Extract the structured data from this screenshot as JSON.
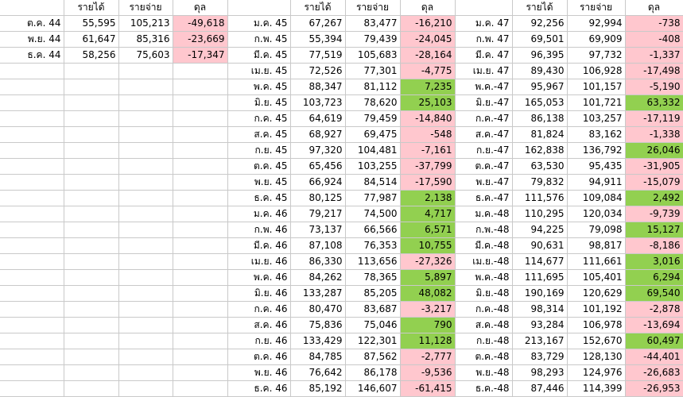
{
  "headers": {
    "income": "รายได้",
    "expense": "รายจ่าย",
    "balance": "ดุล"
  },
  "colors": {
    "negative_fill": "#ffc7ce",
    "positive_fill": "#92d050",
    "grid": "#c9c9c9"
  },
  "block1": [
    {
      "label": "ต.ค. 44",
      "income": "55,595",
      "expense": "105,213",
      "balance": "-49,618"
    },
    {
      "label": "พ.ย. 44",
      "income": "61,647",
      "expense": "85,316",
      "balance": "-23,669"
    },
    {
      "label": "ธ.ค. 44",
      "income": "58,256",
      "expense": "75,603",
      "balance": "-17,347"
    }
  ],
  "block2": [
    {
      "label": "ม.ค. 45",
      "income": "67,267",
      "expense": "83,477",
      "balance": "-16,210"
    },
    {
      "label": "ก.พ. 45",
      "income": "55,394",
      "expense": "79,439",
      "balance": "-24,045"
    },
    {
      "label": "มี.ค. 45",
      "income": "77,519",
      "expense": "105,683",
      "balance": "-28,164"
    },
    {
      "label": "เม.ย. 45",
      "income": "72,526",
      "expense": "77,301",
      "balance": "-4,775"
    },
    {
      "label": "พ.ค. 45",
      "income": "88,347",
      "expense": "81,112",
      "balance": "7,235"
    },
    {
      "label": "มิ.ย. 45",
      "income": "103,723",
      "expense": "78,620",
      "balance": "25,103"
    },
    {
      "label": "ก.ค. 45",
      "income": "64,619",
      "expense": "79,459",
      "balance": "-14,840"
    },
    {
      "label": "ส.ค. 45",
      "income": "68,927",
      "expense": "69,475",
      "balance": "-548"
    },
    {
      "label": "ก.ย. 45",
      "income": "97,320",
      "expense": "104,481",
      "balance": "-7,161"
    },
    {
      "label": "ต.ค. 45",
      "income": "65,456",
      "expense": "103,255",
      "balance": "-37,799"
    },
    {
      "label": "พ.ย. 45",
      "income": "66,924",
      "expense": "84,514",
      "balance": "-17,590"
    },
    {
      "label": "ธ.ค. 45",
      "income": "80,125",
      "expense": "77,987",
      "balance": "2,138"
    },
    {
      "label": "ม.ค. 46",
      "income": "79,217",
      "expense": "74,500",
      "balance": "4,717"
    },
    {
      "label": "ก.พ. 46",
      "income": "73,137",
      "expense": "66,566",
      "balance": "6,571"
    },
    {
      "label": "มี.ค. 46",
      "income": "87,108",
      "expense": "76,353",
      "balance": "10,755"
    },
    {
      "label": "เม.ย. 46",
      "income": "86,330",
      "expense": "113,656",
      "balance": "-27,326"
    },
    {
      "label": "พ.ค. 46",
      "income": "84,262",
      "expense": "78,365",
      "balance": "5,897"
    },
    {
      "label": "มิ.ย. 46",
      "income": "133,287",
      "expense": "85,205",
      "balance": "48,082"
    },
    {
      "label": "ก.ค. 46",
      "income": "80,470",
      "expense": "83,687",
      "balance": "-3,217"
    },
    {
      "label": "ส.ค. 46",
      "income": "75,836",
      "expense": "75,046",
      "balance": "790"
    },
    {
      "label": "ก.ย. 46",
      "income": "133,429",
      "expense": "122,301",
      "balance": "11,128"
    },
    {
      "label": "ต.ค. 46",
      "income": "84,785",
      "expense": "87,562",
      "balance": "-2,777"
    },
    {
      "label": "พ.ย. 46",
      "income": "76,642",
      "expense": "86,178",
      "balance": "-9,536"
    },
    {
      "label": "ธ.ค. 46",
      "income": "85,192",
      "expense": "146,607",
      "balance": "-61,415"
    }
  ],
  "block3": [
    {
      "label": "ม.ค. 47",
      "income": "92,256",
      "expense": "92,994",
      "balance": "-738"
    },
    {
      "label": "ก.พ. 47",
      "income": "69,501",
      "expense": "69,909",
      "balance": "-408"
    },
    {
      "label": "มี.ค. 47",
      "income": "96,395",
      "expense": "97,732",
      "balance": "-1,337"
    },
    {
      "label": "เม.ย. 47",
      "income": "89,430",
      "expense": "106,928",
      "balance": "-17,498"
    },
    {
      "label": "พ.ค.-47",
      "income": "95,967",
      "expense": "101,157",
      "balance": "-5,190"
    },
    {
      "label": "มิ.ย.-47",
      "income": "165,053",
      "expense": "101,721",
      "balance": "63,332"
    },
    {
      "label": "ก.ค.-47",
      "income": "86,138",
      "expense": "103,257",
      "balance": "-17,119"
    },
    {
      "label": "ส.ค.-47",
      "income": "81,824",
      "expense": "83,162",
      "balance": "-1,338"
    },
    {
      "label": "ก.ย.-47",
      "income": "162,838",
      "expense": "136,792",
      "balance": "26,046"
    },
    {
      "label": "ต.ค.-47",
      "income": "63,530",
      "expense": "95,435",
      "balance": "-31,905"
    },
    {
      "label": "พ.ย.-47",
      "income": "79,832",
      "expense": "94,911",
      "balance": "-15,079"
    },
    {
      "label": "ธ.ค.-47",
      "income": "111,576",
      "expense": "109,084",
      "balance": "2,492"
    },
    {
      "label": "ม.ค.-48",
      "income": "110,295",
      "expense": "120,034",
      "balance": "-9,739"
    },
    {
      "label": "ก.พ.-48",
      "income": "94,225",
      "expense": "79,098",
      "balance": "15,127"
    },
    {
      "label": "มี.ค.-48",
      "income": "90,631",
      "expense": "98,817",
      "balance": "-8,186"
    },
    {
      "label": "เม.ย.-48",
      "income": "114,677",
      "expense": "111,661",
      "balance": "3,016"
    },
    {
      "label": "พ.ค.-48",
      "income": "111,695",
      "expense": "105,401",
      "balance": "6,294"
    },
    {
      "label": "มิ.ย.-48",
      "income": "190,169",
      "expense": "120,629",
      "balance": "69,540"
    },
    {
      "label": "ก.ค.-48",
      "income": "98,314",
      "expense": "101,192",
      "balance": "-2,878"
    },
    {
      "label": "ส.ค.-48",
      "income": "93,284",
      "expense": "106,978",
      "balance": "-13,694"
    },
    {
      "label": "ก.ย.-48",
      "income": "213,167",
      "expense": "152,670",
      "balance": "60,497"
    },
    {
      "label": "ต.ค.-48",
      "income": "83,729",
      "expense": "128,130",
      "balance": "-44,401"
    },
    {
      "label": "พ.ย.-48",
      "income": "98,293",
      "expense": "124,976",
      "balance": "-26,683"
    },
    {
      "label": "ธ.ค.-48",
      "income": "87,446",
      "expense": "114,399",
      "balance": "-26,953"
    }
  ]
}
